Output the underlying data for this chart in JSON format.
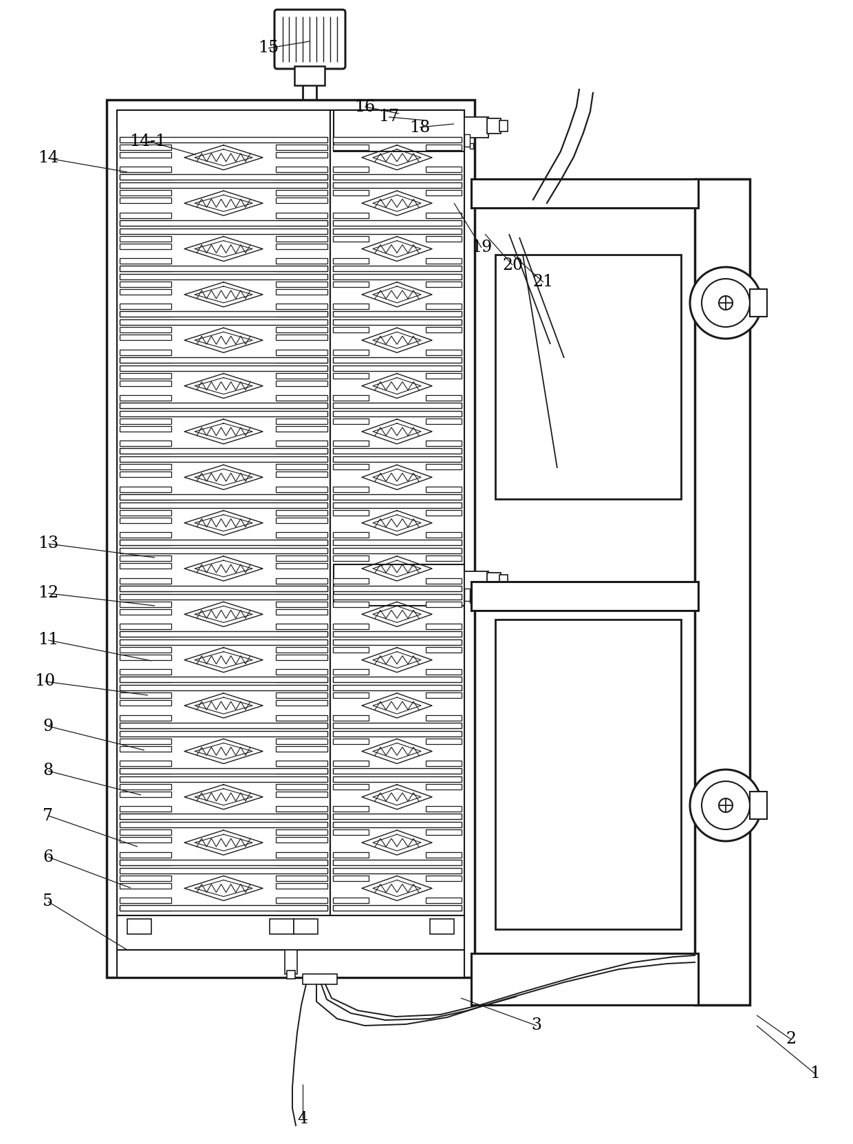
{
  "bg_color": "#ffffff",
  "line_color": "#1a1a1a",
  "annotations": [
    [
      "1",
      1185,
      1560,
      1100,
      1490
    ],
    [
      "2",
      1150,
      1510,
      1100,
      1475
    ],
    [
      "3",
      780,
      1490,
      670,
      1450
    ],
    [
      "4",
      440,
      1625,
      440,
      1575
    ],
    [
      "5",
      70,
      1310,
      185,
      1380
    ],
    [
      "6",
      70,
      1245,
      190,
      1290
    ],
    [
      "7",
      70,
      1185,
      200,
      1230
    ],
    [
      "8",
      70,
      1120,
      205,
      1155
    ],
    [
      "9",
      70,
      1055,
      210,
      1090
    ],
    [
      "10",
      65,
      990,
      215,
      1010
    ],
    [
      "11",
      70,
      930,
      220,
      960
    ],
    [
      "12",
      70,
      862,
      225,
      880
    ],
    [
      "13",
      70,
      790,
      225,
      810
    ],
    [
      "14",
      70,
      230,
      185,
      250
    ],
    [
      "14-1",
      215,
      205,
      285,
      225
    ],
    [
      "15",
      390,
      70,
      450,
      60
    ],
    [
      "16",
      530,
      155,
      580,
      165
    ],
    [
      "17",
      565,
      170,
      620,
      175
    ],
    [
      "18",
      610,
      185,
      660,
      180
    ],
    [
      "19",
      700,
      360,
      660,
      295
    ],
    [
      "20",
      745,
      385,
      705,
      340
    ],
    [
      "21",
      790,
      410,
      745,
      370
    ]
  ]
}
